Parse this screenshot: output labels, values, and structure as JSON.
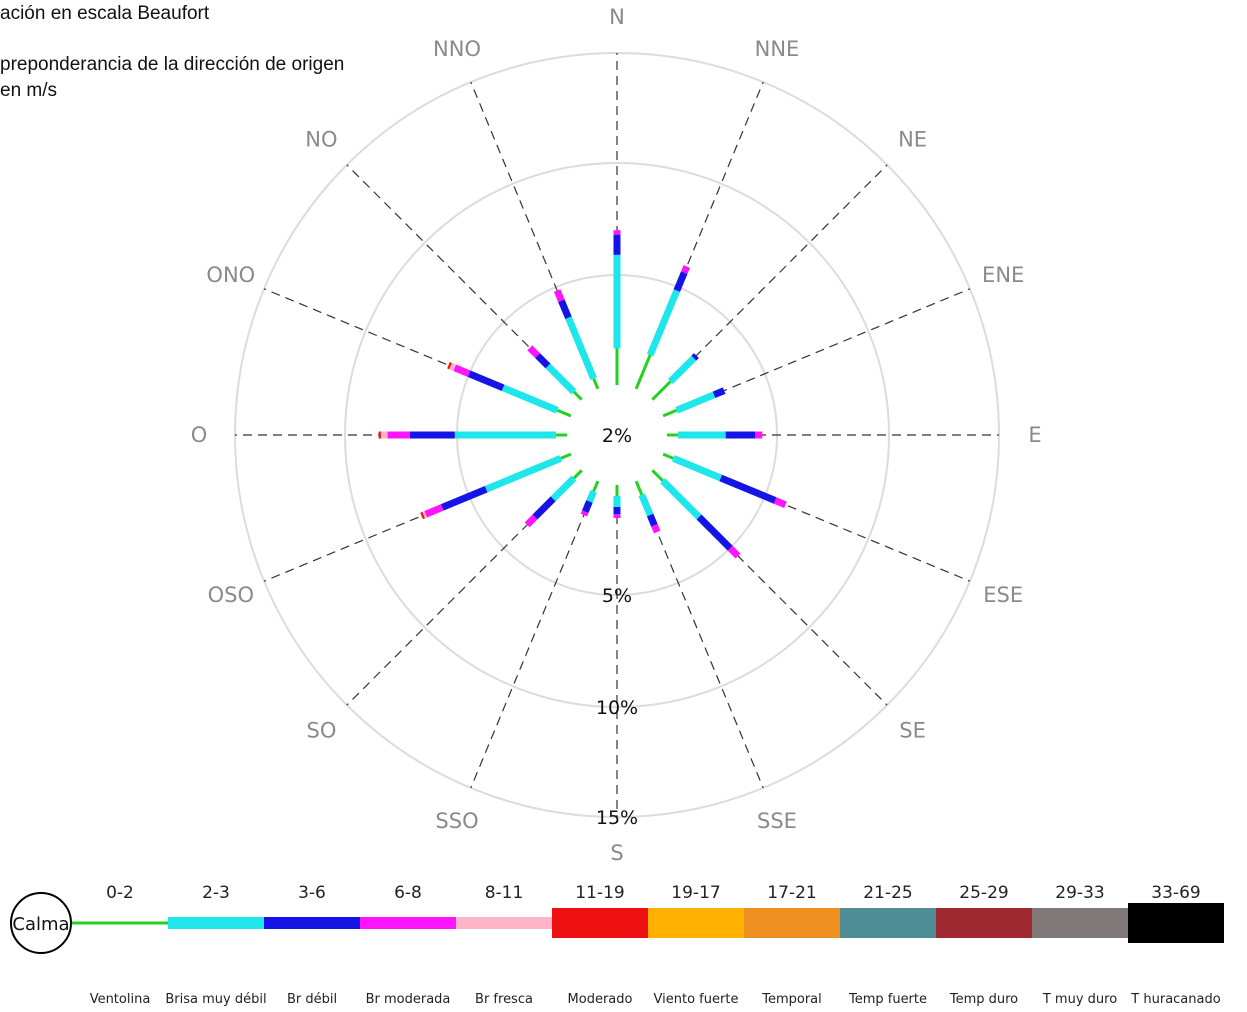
{
  "header": {
    "line1": "ación en escala Beaufort",
    "line2": "preponderancia de la dirección de origen",
    "line3": "en m/s"
  },
  "chart_data": {
    "type": "wind-rose",
    "center_label": "2%",
    "ring_labels": [
      "5%",
      "10%",
      "15%"
    ],
    "directions": [
      "N",
      "NNE",
      "NE",
      "ENE",
      "E",
      "ESE",
      "SE",
      "SSE",
      "S",
      "SSO",
      "SO",
      "OSO",
      "O",
      "ONO",
      "NO",
      "NNO"
    ],
    "colors": {
      "Ventolina": "#22d222",
      "Brisa muy débil": "#1ee6ea",
      "Br débil": "#1414e6",
      "Br moderada": "#ff14ff",
      "Br fresca": "#ffb4c8",
      "Moderado": "#ee1010",
      "Viento fuerte": "#ffb000",
      "Temporal": "#f09020",
      "Temp fuerte": "#4e8c96",
      "Temp duro": "#a02830",
      "T muy duro": "#807878",
      "T huracanado": "#000000"
    },
    "legend": {
      "calm_label": "Calma",
      "ranges": [
        "0-2",
        "2-3",
        "3-6",
        "6-8",
        "8-11",
        "11-19",
        "19-17",
        "17-21",
        "21-25",
        "25-29",
        "29-33",
        "33-69"
      ],
      "names": [
        "Ventolina",
        "Brisa muy débil",
        "Br débil",
        "Br moderada",
        "Br fresca",
        "Moderado",
        "Viento fuerte",
        "Temporal",
        "Temp fuerte",
        "Temp duro",
        "T muy duro",
        "T huracanado"
      ]
    },
    "series_order": [
      "Ventolina",
      "Brisa muy débil",
      "Br débil",
      "Br moderada",
      "Br fresca",
      "Moderado"
    ],
    "cumulative_percent_by_direction": {
      "N": [
        3.0,
        5.9,
        6.8,
        7.0,
        7.0,
        7.0
      ],
      "NNE": [
        3.0,
        4.9,
        5.7,
        6.0,
        6.0,
        6.0
      ],
      "NE": [
        2.7,
        3.6,
        3.7,
        3.7,
        3.7,
        3.7
      ],
      "ENE": [
        2.4,
        3.5,
        3.8,
        3.8,
        3.8,
        3.8
      ],
      "E": [
        2.3,
        3.6,
        4.4,
        4.6,
        4.6,
        4.6
      ],
      "ESE": [
        2.3,
        3.7,
        5.5,
        6.0,
        6.0,
        6.0
      ],
      "SE": [
        2.4,
        3.8,
        5.0,
        5.5,
        5.5,
        5.5
      ],
      "SSE": [
        2.4,
        3.0,
        3.3,
        3.5,
        3.5,
        3.5
      ],
      "S": [
        2.3,
        2.6,
        2.8,
        2.9,
        2.9,
        2.9
      ],
      "SSO": [
        2.3,
        2.6,
        2.9,
        3.0,
        3.0,
        3.0
      ],
      "SO": [
        2.3,
        3.1,
        3.8,
        4.1,
        4.1,
        4.1
      ],
      "OSO": [
        2.3,
        4.5,
        6.3,
        7.1,
        7.2,
        7.3
      ],
      "O": [
        2.3,
        5.1,
        7.1,
        8.1,
        8.4,
        8.5
      ],
      "ONO": [
        2.4,
        4.0,
        5.0,
        5.7,
        5.9,
        6.0
      ],
      "NO": [
        2.3,
        3.3,
        3.7,
        4.0,
        4.0,
        4.0
      ],
      "NNO": [
        2.3,
        4.1,
        4.6,
        4.9,
        4.9,
        4.9
      ]
    }
  }
}
